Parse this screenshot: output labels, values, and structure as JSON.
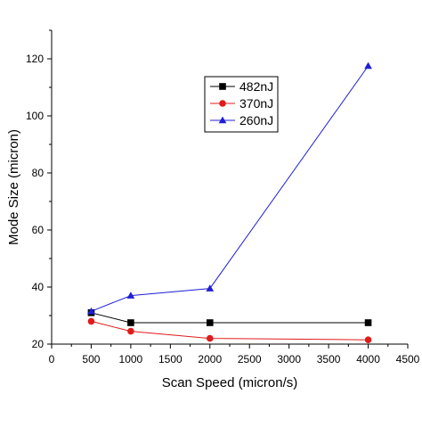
{
  "chart_data": {
    "type": "line",
    "title": "",
    "xlabel": "Scan Speed (micron/s)",
    "ylabel": "Mode Size (micron)",
    "xlim": [
      0,
      4500
    ],
    "ylim": [
      20,
      130
    ],
    "xticks": [
      0,
      500,
      1000,
      1500,
      2000,
      2500,
      3000,
      3500,
      4000,
      4500
    ],
    "yticks": [
      20,
      40,
      60,
      80,
      100,
      120
    ],
    "legend_position": "upper-center",
    "grid": false,
    "series": [
      {
        "name": "482nJ",
        "color": "#000000",
        "marker": "square",
        "x": [
          500,
          1000,
          2000,
          4000
        ],
        "y": [
          31,
          27.5,
          27.5,
          27.5
        ]
      },
      {
        "name": "370nJ",
        "color": "#e01b1b",
        "marker": "circle",
        "x": [
          500,
          1000,
          2000,
          4000
        ],
        "y": [
          28,
          24.5,
          22,
          21.5
        ]
      },
      {
        "name": "260nJ",
        "color": "#1f1fd6",
        "marker": "triangle",
        "x": [
          500,
          1000,
          2000,
          4000
        ],
        "y": [
          31.5,
          37,
          39.5,
          117.5
        ]
      }
    ]
  }
}
